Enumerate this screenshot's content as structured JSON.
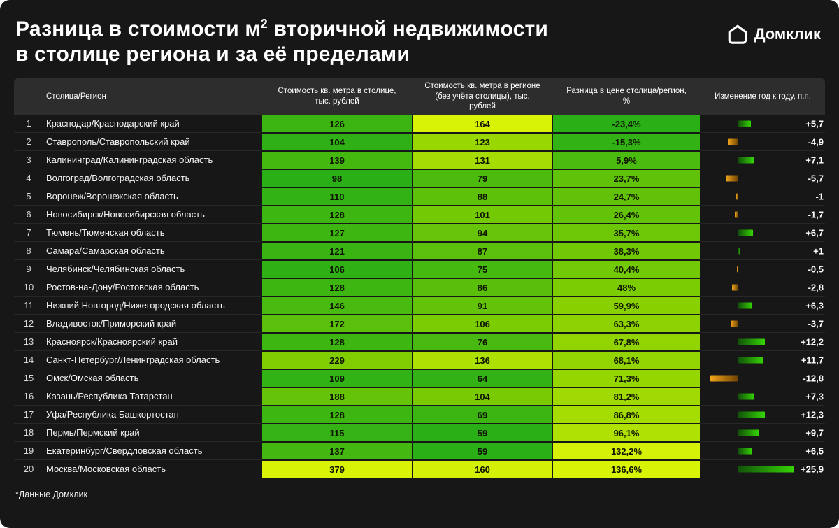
{
  "title": {
    "part1": "Разница в стоимости м",
    "sup": "2",
    "part2": " вторичной недвижимости",
    "line2": "в столице региона и за её пределами"
  },
  "brand": {
    "name": "Домклик"
  },
  "footnote": "*Данные Домклик",
  "colors": {
    "background": "#171717",
    "header_bg": "#2d2d2d",
    "heat_stops": [
      "#2aaf17",
      "#86cf00",
      "#d9f307"
    ],
    "bar_positive_dark": "#12520a",
    "bar_positive_bright": "#35d504",
    "bar_negative_bright": "#f2a51c",
    "bar_negative_dark": "#6b4100",
    "text_on_heat": "#0f1400"
  },
  "chart_data": {
    "type": "heatmap-table",
    "columns": [
      "",
      "Столица/Регион",
      "Стоимость кв. метра в столице, тыс. рублей",
      "Стоимость кв. метра в регионе (без учёта столицы), тыс. рублей",
      "Разница в цене столица/регион, %",
      "Изменение год к году, п.п."
    ],
    "rows": [
      {
        "n": 1,
        "region": "Краснодар/Краснодарский край",
        "capital": 126,
        "outside": 164,
        "diff_label": "-23,4%",
        "diff": -23.4,
        "yoy_label": "+5,7",
        "yoy": 5.7
      },
      {
        "n": 2,
        "region": "Ставрополь/Ставропольский край",
        "capital": 104,
        "outside": 123,
        "diff_label": "-15,3%",
        "diff": -15.3,
        "yoy_label": "-4,9",
        "yoy": -4.9
      },
      {
        "n": 3,
        "region": "Калининград/Калининградская область",
        "capital": 139,
        "outside": 131,
        "diff_label": "5,9%",
        "diff": 5.9,
        "yoy_label": "+7,1",
        "yoy": 7.1
      },
      {
        "n": 4,
        "region": "Волгоград/Волгоградская область",
        "capital": 98,
        "outside": 79,
        "diff_label": "23,7%",
        "diff": 23.7,
        "yoy_label": "-5,7",
        "yoy": -5.7
      },
      {
        "n": 5,
        "region": "Воронеж/Воронежская область",
        "capital": 110,
        "outside": 88,
        "diff_label": "24,7%",
        "diff": 24.7,
        "yoy_label": "-1",
        "yoy": -1.0
      },
      {
        "n": 6,
        "region": "Новосибирск/Новосибирская область",
        "capital": 128,
        "outside": 101,
        "diff_label": "26,4%",
        "diff": 26.4,
        "yoy_label": "-1,7",
        "yoy": -1.7
      },
      {
        "n": 7,
        "region": "Тюмень/Тюменская область",
        "capital": 127,
        "outside": 94,
        "diff_label": "35,7%",
        "diff": 35.7,
        "yoy_label": "+6,7",
        "yoy": 6.7
      },
      {
        "n": 8,
        "region": "Самара/Самарская область",
        "capital": 121,
        "outside": 87,
        "diff_label": "38,3%",
        "diff": 38.3,
        "yoy_label": "+1",
        "yoy": 1.0
      },
      {
        "n": 9,
        "region": "Челябинск/Челябинская область",
        "capital": 106,
        "outside": 75,
        "diff_label": "40,4%",
        "diff": 40.4,
        "yoy_label": "-0,5",
        "yoy": -0.5
      },
      {
        "n": 10,
        "region": "Ростов-на-Дону/Ростовская область",
        "capital": 128,
        "outside": 86,
        "diff_label": "48%",
        "diff": 48.0,
        "yoy_label": "-2,8",
        "yoy": -2.8
      },
      {
        "n": 11,
        "region": "Нижний Новгород/Нижегородская область",
        "capital": 146,
        "outside": 91,
        "diff_label": "59,9%",
        "diff": 59.9,
        "yoy_label": "+6,3",
        "yoy": 6.3
      },
      {
        "n": 12,
        "region": "Владивосток/Приморский край",
        "capital": 172,
        "outside": 106,
        "diff_label": "63,3%",
        "diff": 63.3,
        "yoy_label": "-3,7",
        "yoy": -3.7
      },
      {
        "n": 13,
        "region": "Красноярск/Красноярский край",
        "capital": 128,
        "outside": 76,
        "diff_label": "67,8%",
        "diff": 67.8,
        "yoy_label": "+12,2",
        "yoy": 12.2
      },
      {
        "n": 14,
        "region": "Санкт-Петербург/Ленинградская область",
        "capital": 229,
        "outside": 136,
        "diff_label": "68,1%",
        "diff": 68.1,
        "yoy_label": "+11,7",
        "yoy": 11.7
      },
      {
        "n": 15,
        "region": "Омск/Омская область",
        "capital": 109,
        "outside": 64,
        "diff_label": "71,3%",
        "diff": 71.3,
        "yoy_label": "-12,8",
        "yoy": -12.8
      },
      {
        "n": 16,
        "region": "Казань/Республика Татарстан",
        "capital": 188,
        "outside": 104,
        "diff_label": "81,2%",
        "diff": 81.2,
        "yoy_label": "+7,3",
        "yoy": 7.3
      },
      {
        "n": 17,
        "region": "Уфа/Республика Башкортостан",
        "capital": 128,
        "outside": 69,
        "diff_label": "86,8%",
        "diff": 86.8,
        "yoy_label": "+12,3",
        "yoy": 12.3
      },
      {
        "n": 18,
        "region": "Пермь/Пермский край",
        "capital": 115,
        "outside": 59,
        "diff_label": "96,1%",
        "diff": 96.1,
        "yoy_label": "+9,7",
        "yoy": 9.7
      },
      {
        "n": 19,
        "region": "Екатеринбург/Свердловская область",
        "capital": 137,
        "outside": 59,
        "diff_label": "132,2%",
        "diff": 132.2,
        "yoy_label": "+6,5",
        "yoy": 6.5
      },
      {
        "n": 20,
        "region": "Москва/Московская область",
        "capital": 379,
        "outside": 160,
        "diff_label": "136,6%",
        "diff": 136.6,
        "yoy_label": "+25,9",
        "yoy": 25.9
      }
    ]
  }
}
